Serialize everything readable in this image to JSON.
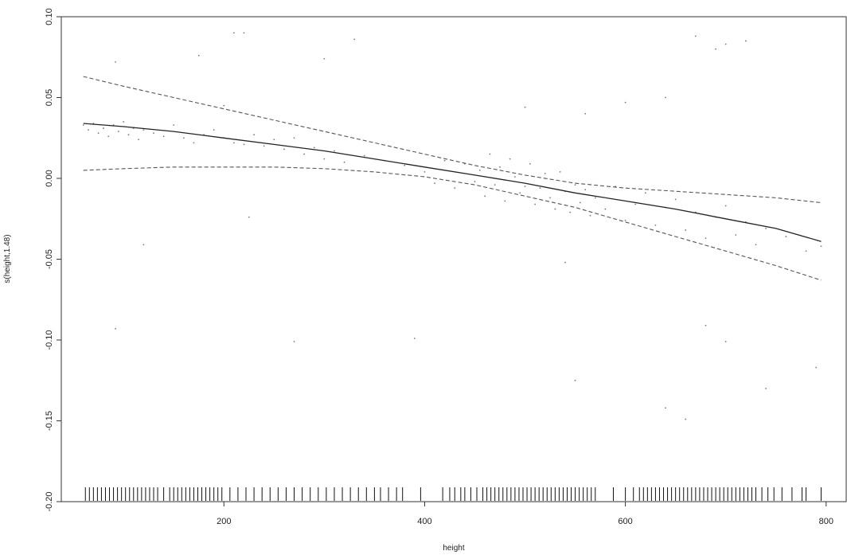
{
  "chart_data": {
    "type": "line",
    "title": "",
    "xlabel": "height",
    "ylabel": "s(height,1.48)",
    "xlim": [
      38,
      820
    ],
    "ylim": [
      -0.2,
      0.1
    ],
    "x_ticks": [
      200,
      400,
      600,
      800
    ],
    "y_ticks": [
      -0.2,
      -0.15,
      -0.1,
      -0.05,
      0.0,
      0.05,
      0.1
    ],
    "x_tick_labels": [
      "200",
      "400",
      "600",
      "800"
    ],
    "y_tick_labels": [
      "-0.20",
      "-0.15",
      "-0.10",
      "-0.05",
      "0.00",
      "0.05",
      "0.10"
    ],
    "grid": false,
    "legend": "none",
    "series": [
      {
        "style": "solid",
        "x": [
          60,
          100,
          150,
          200,
          250,
          300,
          350,
          400,
          450,
          500,
          550,
          600,
          650,
          700,
          750,
          795
        ],
        "y": [
          0.034,
          0.032,
          0.029,
          0.025,
          0.021,
          0.017,
          0.012,
          0.007,
          0.002,
          -0.003,
          -0.009,
          -0.014,
          -0.019,
          -0.025,
          -0.031,
          -0.039
        ]
      },
      {
        "style": "dashed",
        "x": [
          60,
          100,
          150,
          200,
          250,
          300,
          350,
          400,
          450,
          500,
          550,
          600,
          650,
          700,
          750,
          795
        ],
        "y": [
          0.063,
          0.057,
          0.05,
          0.043,
          0.036,
          0.029,
          0.022,
          0.015,
          0.008,
          0.002,
          -0.003,
          -0.006,
          -0.008,
          -0.01,
          -0.012,
          -0.015
        ]
      },
      {
        "style": "dashed",
        "x": [
          60,
          100,
          150,
          200,
          250,
          300,
          350,
          400,
          450,
          500,
          550,
          600,
          650,
          700,
          750,
          795
        ],
        "y": [
          0.005,
          0.006,
          0.007,
          0.007,
          0.007,
          0.006,
          0.004,
          0.001,
          -0.004,
          -0.011,
          -0.018,
          -0.027,
          -0.036,
          -0.045,
          -0.054,
          -0.063
        ]
      }
    ],
    "residuals": {
      "x": [
        60,
        65,
        70,
        75,
        80,
        85,
        90,
        95,
        100,
        105,
        110,
        115,
        120,
        130,
        140,
        150,
        160,
        170,
        180,
        190,
        200,
        210,
        220,
        230,
        240,
        250,
        260,
        270,
        280,
        290,
        300,
        310,
        320,
        340,
        360,
        380,
        400,
        410,
        420,
        430,
        440,
        450,
        455,
        460,
        465,
        470,
        475,
        480,
        485,
        490,
        495,
        500,
        505,
        510,
        515,
        520,
        525,
        530,
        535,
        540,
        545,
        550,
        555,
        560,
        565,
        570,
        580,
        590,
        600,
        610,
        620,
        630,
        640,
        650,
        660,
        670,
        680,
        690,
        700,
        710,
        720,
        730,
        740,
        760,
        780,
        795,
        92,
        175,
        200,
        210,
        220,
        300,
        330,
        500,
        560,
        600,
        640,
        670,
        690,
        700,
        720,
        92,
        120,
        225,
        270,
        390,
        540,
        550,
        640,
        660,
        680,
        700,
        740,
        790
      ],
      "y": [
        0.033,
        0.03,
        0.034,
        0.028,
        0.031,
        0.026,
        0.033,
        0.029,
        0.035,
        0.027,
        0.031,
        0.024,
        0.03,
        0.028,
        0.026,
        0.033,
        0.025,
        0.022,
        0.027,
        0.03,
        0.025,
        0.022,
        0.021,
        0.027,
        0.02,
        0.024,
        0.018,
        0.025,
        0.015,
        0.019,
        0.012,
        0.017,
        0.01,
        0.014,
        0.011,
        0.008,
        0.004,
        -0.003,
        0.011,
        -0.006,
        0.009,
        -0.002,
        0.005,
        -0.011,
        0.015,
        -0.004,
        0.007,
        -0.014,
        0.012,
        0.001,
        -0.009,
        -0.005,
        0.009,
        -0.016,
        -0.006,
        0.003,
        -0.012,
        -0.019,
        0.004,
        -0.008,
        -0.021,
        -0.004,
        -0.015,
        -0.007,
        -0.023,
        -0.012,
        -0.019,
        -0.005,
        -0.026,
        -0.016,
        -0.009,
        -0.029,
        -0.018,
        -0.013,
        -0.032,
        -0.021,
        -0.037,
        -0.024,
        -0.017,
        -0.035,
        -0.027,
        -0.041,
        -0.031,
        -0.036,
        -0.045,
        -0.042,
        0.072,
        0.076,
        0.045,
        0.09,
        0.09,
        0.074,
        0.086,
        0.044,
        0.04,
        0.047,
        0.05,
        0.088,
        0.08,
        0.083,
        0.085,
        -0.093,
        -0.041,
        -0.024,
        -0.101,
        -0.099,
        -0.052,
        -0.125,
        -0.142,
        -0.149,
        -0.091,
        -0.101,
        -0.13,
        -0.117
      ]
    },
    "rug": [
      62,
      66,
      70,
      74,
      78,
      82,
      86,
      90,
      94,
      98,
      102,
      106,
      110,
      114,
      118,
      122,
      126,
      130,
      134,
      140,
      146,
      150,
      154,
      158,
      162,
      166,
      170,
      174,
      178,
      182,
      186,
      190,
      194,
      198,
      206,
      214,
      222,
      230,
      238,
      246,
      254,
      262,
      270,
      278,
      286,
      294,
      302,
      310,
      318,
      326,
      334,
      342,
      350,
      356,
      364,
      372,
      378,
      396,
      418,
      425,
      430,
      436,
      440,
      446,
      452,
      458,
      462,
      466,
      470,
      474,
      478,
      482,
      486,
      490,
      494,
      498,
      502,
      506,
      510,
      514,
      518,
      522,
      526,
      530,
      534,
      538,
      542,
      546,
      550,
      554,
      558,
      562,
      566,
      570,
      588,
      600,
      608,
      614,
      618,
      622,
      626,
      630,
      634,
      638,
      642,
      646,
      650,
      654,
      658,
      662,
      666,
      670,
      674,
      678,
      682,
      686,
      690,
      694,
      698,
      702,
      706,
      710,
      714,
      718,
      722,
      726,
      730,
      736,
      742,
      748,
      756,
      766,
      776,
      780,
      795
    ]
  }
}
